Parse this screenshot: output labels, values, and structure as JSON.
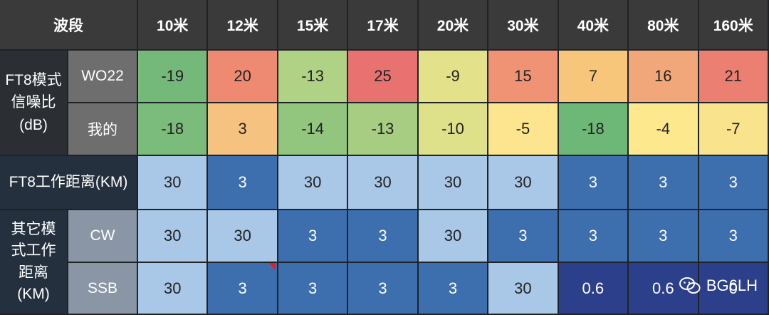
{
  "header": {
    "band_label": "波段",
    "bands": [
      "10米",
      "12米",
      "15米",
      "17米",
      "20米",
      "30米",
      "40米",
      "80米",
      "160米"
    ]
  },
  "snr": {
    "group_label": "FT8模式信噪比(dB)",
    "group_lines": [
      "FT8模式",
      "信噪比",
      "(dB)"
    ],
    "rows": [
      {
        "label": "WO22",
        "values": [
          "-19",
          "20",
          "-13",
          "25",
          "-9",
          "15",
          "7",
          "16",
          "21"
        ],
        "colors": [
          "#74b97a",
          "#ee8a72",
          "#b0d284",
          "#e87270",
          "#e3e189",
          "#f09374",
          "#f7c67a",
          "#f2a77b",
          "#eb7f72"
        ]
      },
      {
        "label": "我的",
        "values": [
          "-18",
          "3",
          "-14",
          "-13",
          "-10",
          "-5",
          "-18",
          "-4",
          "-7"
        ],
        "colors": [
          "#7bbb7b",
          "#f6c27f",
          "#92c57e",
          "#a6cd82",
          "#dee08a",
          "#fde48e",
          "#6db777",
          "#fde88d",
          "#f9e38c"
        ]
      }
    ]
  },
  "ft8_distance": {
    "label": "FT8工作距离(KM)",
    "values": [
      "30",
      "3",
      "30",
      "30",
      "30",
      "30",
      "3",
      "3",
      "3"
    ],
    "colors": [
      "#a9c7e6",
      "#3d6fae",
      "#a9c7e6",
      "#a9c7e6",
      "#a9c7e6",
      "#a9c7e6",
      "#3d6fae",
      "#3d6fae",
      "#3d6fae"
    ]
  },
  "other_modes": {
    "group_label": "其它模式工作距离(KM)",
    "group_lines": [
      "其它模",
      "式工作",
      "距离",
      "(KM)"
    ],
    "rows": [
      {
        "label": "CW",
        "values": [
          "30",
          "30",
          "3",
          "3",
          "30",
          "3",
          "3",
          "3",
          "3"
        ],
        "colors": [
          "#a9c7e6",
          "#a9c7e6",
          "#3d6fae",
          "#3d6fae",
          "#a9c7e6",
          "#3d6fae",
          "#3d6fae",
          "#3d6fae",
          "#3d6fae"
        ]
      },
      {
        "label": "SSB",
        "values": [
          "30",
          "3",
          "3",
          "3",
          "3",
          "30",
          "0.6",
          "0.6",
          "0"
        ],
        "colors": [
          "#a9c7e6",
          "#3d6fae",
          "#3d6fae",
          "#3d6fae",
          "#3d6fae",
          "#a9c7e6",
          "#2c3f8a",
          "#2c3f8a",
          "#2c3f8a"
        ]
      }
    ]
  },
  "watermark": {
    "text": "BG6LH",
    "icon": "wechat-icon"
  }
}
